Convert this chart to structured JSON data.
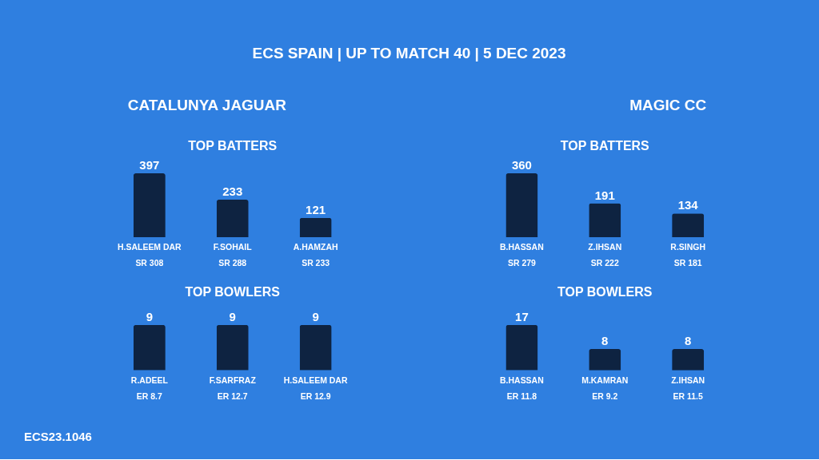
{
  "chart_data": [
    {
      "type": "other",
      "title": "ECS SPAIN | UP TO MATCH 40 | 5 DEC 2023",
      "annotations": [
        "ECS23.1046"
      ]
    },
    {
      "type": "bar",
      "title": "CATALUNYA JAGUAR",
      "subtitle": "TOP BATTERS",
      "categories": [
        "H.SALEEM DAR\nSR 308",
        "F.SOHAIL\nSR 288",
        "A.HAMZAH\nSR 233"
      ],
      "values": [
        397,
        233,
        121
      ],
      "color": "#0e2341",
      "tick_labels": "x",
      "data_labels": true
    },
    {
      "type": "bar",
      "title": "MAGIC CC",
      "subtitle": "TOP BATTERS",
      "categories": [
        "B.HASSAN\nSR 279",
        "Z.IHSAN\nSR 222",
        "R.SINGH\nSR 181"
      ],
      "values": [
        360,
        191,
        134
      ],
      "color": "#0e2341",
      "tick_labels": "x",
      "data_labels": true
    },
    {
      "type": "bar",
      "title": "TOP BOWLERS",
      "categories": [
        "R.ADEEL\nER 8.7",
        "F.SARFRAZ\nER 12.7",
        "H.SALEEM DAR\nER 12.9"
      ],
      "values": [
        9,
        9,
        9
      ],
      "color": "#0e2341",
      "tick_labels": "x",
      "data_labels": true
    },
    {
      "type": "bar",
      "title": "TOP BOWLERS",
      "categories": [
        "B.HASSAN\nER 11.8",
        "M.KAMRAN\nER 9.2",
        "Z.IHSAN\nER 11.5"
      ],
      "values": [
        17,
        8,
        8
      ],
      "color": "#0e2341",
      "tick_labels": "x",
      "data_labels": true
    }
  ]
}
